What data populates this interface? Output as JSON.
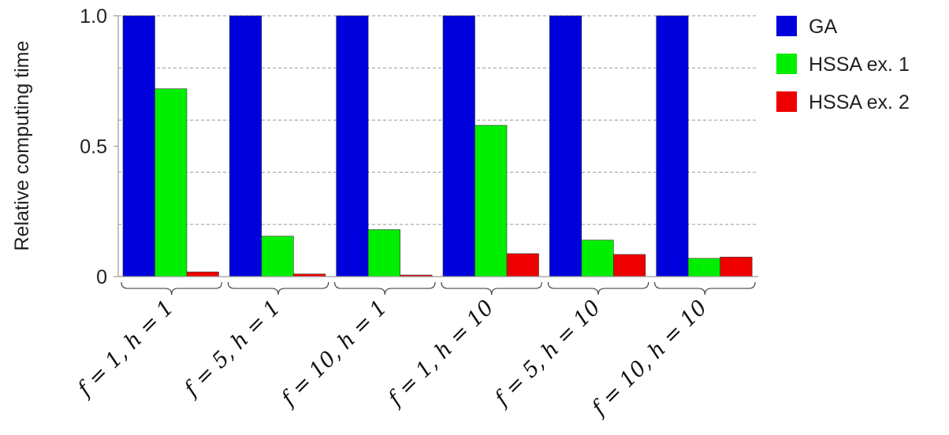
{
  "chart_data": {
    "type": "bar",
    "title": "",
    "xlabel": "",
    "ylabel": "Relative computing time",
    "ylim": [
      0,
      1.0
    ],
    "yticks": [
      0,
      0.5,
      1.0
    ],
    "ytick_labels": [
      "0",
      "0.5",
      "1.0"
    ],
    "grid": true,
    "legend_position": "top-right",
    "categories": [
      "f = 1, h = 1",
      "f = 5, h = 1",
      "f = 10, h = 1",
      "f = 1, h = 10",
      "f = 5, h = 10",
      "f = 10, h = 10"
    ],
    "series": [
      {
        "name": "GA",
        "color": "#0000dd",
        "values": [
          1.0,
          1.0,
          1.0,
          1.0,
          1.0,
          1.0
        ]
      },
      {
        "name": "HSSA ex. 1",
        "color": "#00ee00",
        "values": [
          0.72,
          0.155,
          0.18,
          0.58,
          0.14,
          0.07
        ]
      },
      {
        "name": "HSSA ex. 2",
        "color": "#ee0000",
        "values": [
          0.018,
          0.01,
          0.006,
          0.088,
          0.085,
          0.075
        ]
      }
    ]
  }
}
